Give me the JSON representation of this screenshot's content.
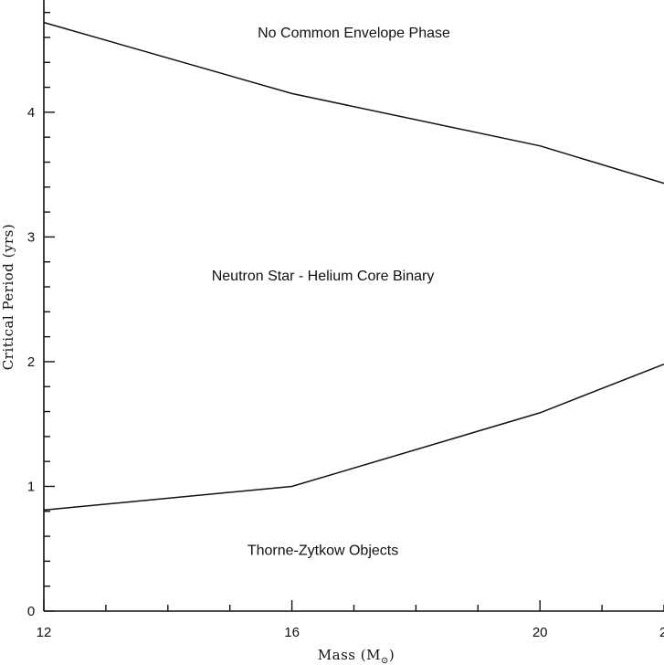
{
  "chart_data": {
    "type": "line",
    "xlabel": "Mass (M",
    "xlabel_sub": "⊙",
    "xlabel_close": ")",
    "ylabel": "Critical Period (yrs)",
    "xlim": [
      12,
      22
    ],
    "ylim": [
      0,
      4.9
    ],
    "x_ticks_major": [
      12,
      16,
      20
    ],
    "x_tick_labels": [
      "12",
      "16",
      "20"
    ],
    "x_tick_clipped_label": "2",
    "y_ticks_major": [
      0,
      1,
      2,
      3,
      4
    ],
    "y_tick_labels": [
      "0",
      "1",
      "2",
      "3",
      "4"
    ],
    "series": [
      {
        "x": [
          12,
          16,
          20,
          22
        ],
        "y": [
          4.72,
          4.15,
          3.73,
          3.43
        ]
      },
      {
        "x": [
          12,
          16,
          20,
          22
        ],
        "y": [
          0.81,
          1.0,
          1.59,
          1.98
        ]
      }
    ],
    "annotations": [
      {
        "text": "No Common Envelope Phase",
        "x": 17.0,
        "y": 4.6
      },
      {
        "text": "Neutron Star - Helium Core Binary",
        "x": 16.5,
        "y": 2.65
      },
      {
        "text": "Thorne-Zytkow Objects",
        "x": 16.5,
        "y": 0.45
      }
    ],
    "grid": false
  }
}
